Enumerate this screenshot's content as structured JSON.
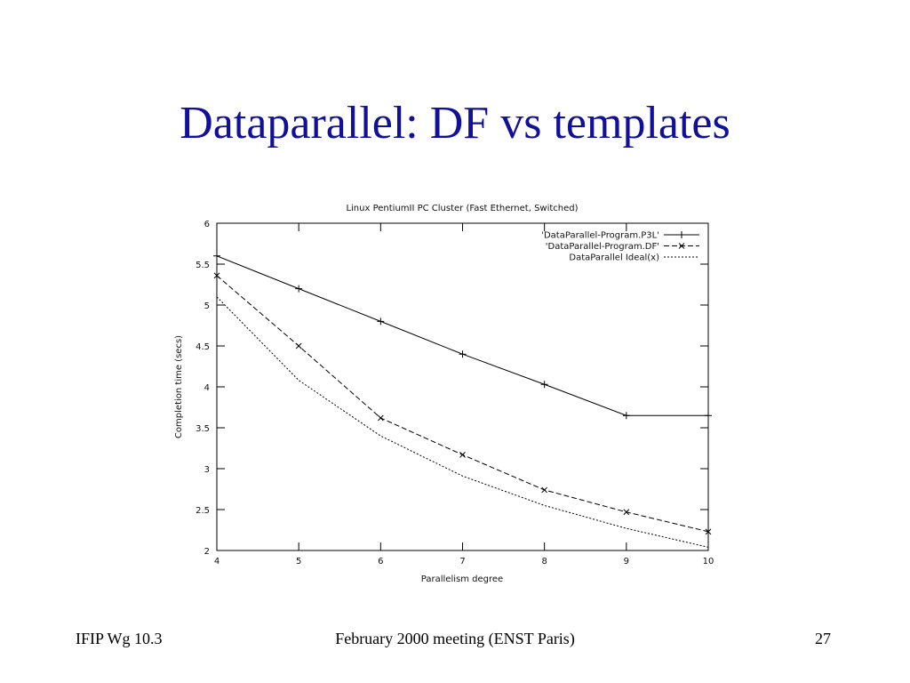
{
  "slide": {
    "title": "Dataparallel: DF vs templates",
    "footer": {
      "left": "IFIP Wg 10.3",
      "center": "February 2000 meeting (ENST Paris)",
      "page": 27
    }
  },
  "chart_data": {
    "type": "line",
    "title": "Linux PentiumII PC Cluster (Fast Ethernet, Switched)",
    "x_label": "Parallelism degree",
    "y_label": "Completion time (secs)",
    "x": [
      4,
      5,
      6,
      7,
      8,
      9,
      10
    ],
    "series": [
      {
        "name": "'DataParallel-Program.P3L'",
        "color": "#000000",
        "dash": "solid",
        "marker": "+",
        "values": [
          5.6,
          5.2,
          4.8,
          4.4,
          4.03,
          3.65,
          3.65
        ]
      },
      {
        "name": "'DataParallel-Program.DF'",
        "color": "#000000",
        "dash": "dashed",
        "marker": "x",
        "values": [
          5.36,
          4.5,
          3.62,
          3.17,
          2.74,
          2.47,
          2.23
        ]
      },
      {
        "name": "DataParallel Ideal(x)",
        "color": "#000000",
        "dash": "dotted",
        "marker": null,
        "values": [
          5.1,
          4.08,
          3.4,
          2.91,
          2.55,
          2.27,
          2.04
        ]
      }
    ],
    "xlim": [
      4,
      10
    ],
    "xticks": [
      4,
      5,
      6,
      7,
      8,
      9,
      10
    ],
    "ylim": [
      2,
      6
    ],
    "yticks": [
      2,
      2.5,
      3,
      3.5,
      4,
      4.5,
      5,
      5.5,
      6
    ],
    "grid": false,
    "legend": "top-right"
  }
}
